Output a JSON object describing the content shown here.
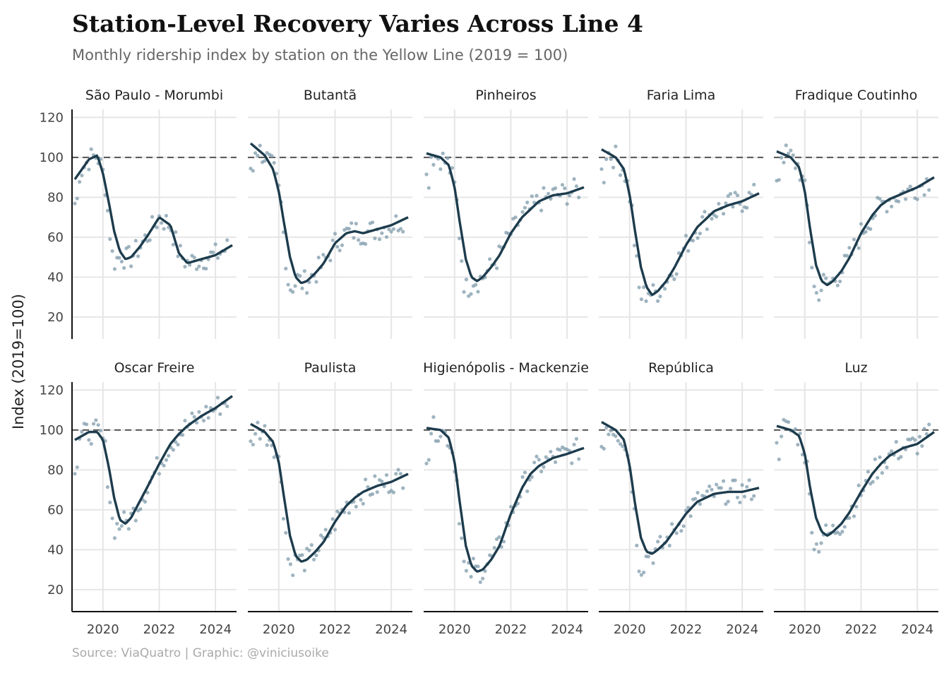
{
  "header": {
    "title": "Station-Level Recovery Varies Across Line 4",
    "subtitle": "Monthly ridership index by station on the Yellow Line (2019 = 100)"
  },
  "footer": {
    "source": "Source: ViaQuatro | Graphic: @viniciusoike"
  },
  "colors": {
    "line": "#1d3c4d",
    "points": "#7f9bab",
    "reference": "#555555",
    "grid": "#e6e6e6"
  },
  "chart_data": {
    "type": "line",
    "ylabel": "Index (2019=100)",
    "xlabel": "",
    "xlim": [
      2018.9,
      2024.75
    ],
    "ylim": [
      9,
      124
    ],
    "x_ticks": [
      2020,
      2022,
      2024
    ],
    "x_tick_labels": [
      "2020",
      "2022",
      "2024"
    ],
    "y_ticks": [
      20,
      40,
      60,
      80,
      100,
      120
    ],
    "y_tick_labels": [
      "20",
      "40",
      "60",
      "80",
      "100",
      "120"
    ],
    "reference_line": 100,
    "grid": true,
    "smooth_x": [
      2019.0,
      2019.5,
      2019.8,
      2020.0,
      2020.2,
      2020.4,
      2020.6,
      2020.8,
      2021.0,
      2021.3,
      2021.6,
      2022.0,
      2022.4,
      2022.7,
      2023.0,
      2023.5,
      2024.0,
      2024.6
    ],
    "stations": [
      {
        "name": "São Paulo - Morumbi",
        "smooth": [
          89,
          99,
          101,
          92,
          78,
          63,
          53,
          49,
          50,
          55,
          61,
          70,
          66,
          52,
          47,
          49,
          51,
          56
        ]
      },
      {
        "name": "Butantã",
        "smooth": [
          107,
          101,
          94,
          83,
          66,
          50,
          40,
          37,
          38,
          42,
          47,
          57,
          62,
          63,
          62,
          64,
          66,
          70
        ]
      },
      {
        "name": "Pinheiros",
        "smooth": [
          102,
          100,
          96,
          85,
          66,
          49,
          40,
          38,
          40,
          45,
          51,
          62,
          70,
          74,
          78,
          81,
          82,
          85
        ]
      },
      {
        "name": "Faria Lima",
        "smooth": [
          104,
          100,
          94,
          81,
          62,
          45,
          35,
          31,
          33,
          38,
          45,
          56,
          65,
          69,
          73,
          76,
          78,
          82
        ]
      },
      {
        "name": "Fradique Coutinho",
        "smooth": [
          103,
          100,
          95,
          83,
          63,
          46,
          38,
          36,
          38,
          43,
          50,
          62,
          71,
          76,
          79,
          82,
          85,
          90
        ]
      },
      {
        "name": "Oscar Freire",
        "smooth": [
          95,
          99,
          99,
          95,
          82,
          66,
          55,
          53,
          56,
          64,
          72,
          83,
          93,
          98,
          102,
          107,
          111,
          117
        ]
      },
      {
        "name": "Paulista",
        "smooth": [
          103,
          99,
          94,
          84,
          65,
          47,
          37,
          34,
          35,
          39,
          44,
          54,
          62,
          66,
          69,
          72,
          74,
          78
        ]
      },
      {
        "name": "Higienópolis - Mackenzie",
        "smooth": [
          101,
          100,
          96,
          84,
          62,
          42,
          32,
          29,
          30,
          35,
          42,
          58,
          71,
          78,
          82,
          86,
          88,
          91
        ]
      },
      {
        "name": "República",
        "smooth": [
          104,
          100,
          95,
          82,
          62,
          46,
          39,
          38,
          40,
          44,
          50,
          58,
          64,
          66,
          68,
          69,
          69,
          71
        ]
      },
      {
        "name": "Luz",
        "smooth": [
          102,
          100,
          97,
          88,
          70,
          56,
          49,
          47,
          49,
          53,
          59,
          69,
          78,
          83,
          87,
          91,
          93,
          99
        ]
      }
    ]
  }
}
